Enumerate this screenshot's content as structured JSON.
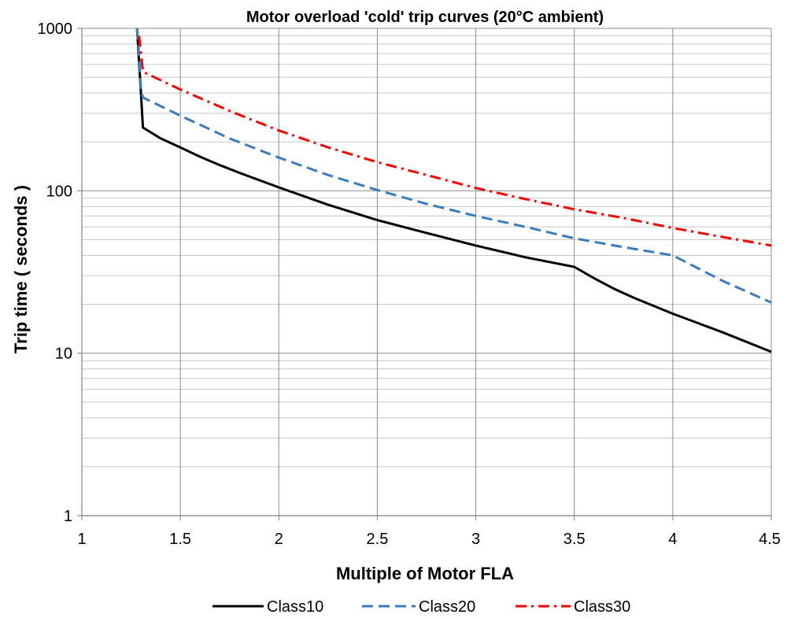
{
  "chart_data": {
    "type": "line",
    "title": "Motor overload 'cold' trip curves  (20°C ambient)",
    "xlabel": "Multiple of Motor FLA",
    "ylabel": "Trip time ( seconds )",
    "xlim": [
      1,
      4.5
    ],
    "ylim": [
      1,
      1000
    ],
    "yscale": "log",
    "x_ticks": [
      1,
      1.5,
      2,
      2.5,
      3,
      3.5,
      4,
      4.5
    ],
    "x_tick_labels": [
      "1",
      "1.5",
      "2",
      "2.5",
      "3",
      "3.5",
      "4",
      "4.5"
    ],
    "y_ticks": [
      1,
      10,
      100,
      1000
    ],
    "y_tick_labels": [
      "1",
      "10",
      "100",
      "1000"
    ],
    "grid": true,
    "legend_position": "bottom",
    "series": [
      {
        "name": "Class10",
        "color": "#000000",
        "dash": "solid",
        "x": [
          1.28,
          1.3,
          1.31,
          1.4,
          1.5,
          1.6,
          1.7,
          1.8,
          2.0,
          2.25,
          2.5,
          2.75,
          3.0,
          3.25,
          3.5,
          3.6,
          3.7,
          3.8,
          4.0,
          4.25,
          4.5
        ],
        "y": [
          1000,
          400,
          245,
          210,
          185,
          162,
          144,
          129,
          105,
          82,
          66,
          55,
          46,
          39,
          34,
          29,
          25,
          22,
          17.5,
          13.5,
          10.2
        ]
      },
      {
        "name": "Class20",
        "color": "#3A7CC1",
        "dash": "dashed",
        "x": [
          1.28,
          1.29,
          1.3,
          1.31,
          1.5,
          1.75,
          2.0,
          2.25,
          2.5,
          2.75,
          3.0,
          3.25,
          3.5,
          3.75,
          4.0,
          4.25,
          4.5
        ],
        "y": [
          1000,
          700,
          420,
          375,
          290,
          210,
          160,
          125,
          101,
          83,
          70,
          60,
          51,
          45,
          40,
          28,
          20.5
        ]
      },
      {
        "name": "Class30",
        "color": "#FF0000",
        "dash": "dashdot",
        "x": [
          1.29,
          1.3,
          1.31,
          1.5,
          1.75,
          2.0,
          2.25,
          2.5,
          2.75,
          3.0,
          3.25,
          3.5,
          3.75,
          4.0,
          4.25,
          4.5
        ],
        "y": [
          900,
          700,
          540,
          420,
          310,
          235,
          185,
          150,
          125,
          104,
          89,
          77,
          68,
          59,
          52,
          46
        ]
      }
    ]
  }
}
